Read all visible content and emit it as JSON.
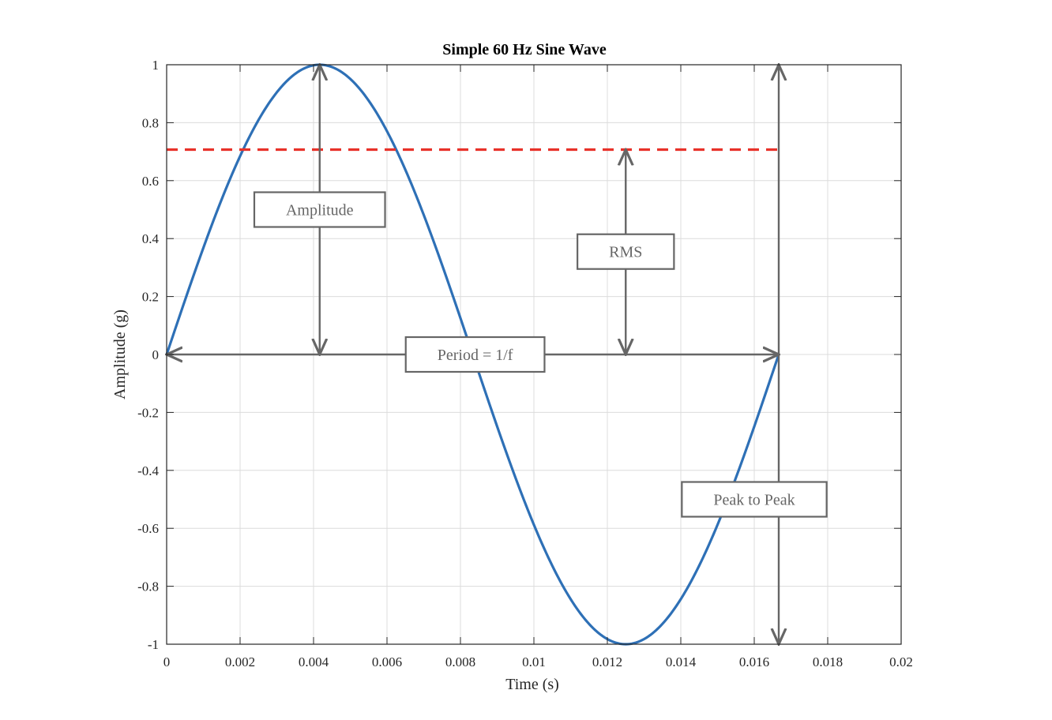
{
  "chart_data": {
    "type": "line",
    "title": "Simple 60 Hz Sine Wave",
    "xlabel": "Time (s)",
    "ylabel": "Amplitude (g)",
    "xlim": [
      0,
      0.02
    ],
    "ylim": [
      -1,
      1
    ],
    "grid": true,
    "x_ticks": [
      "0",
      "0.002",
      "0.004",
      "0.006",
      "0.008",
      "0.01",
      "0.012",
      "0.014",
      "0.016",
      "0.018",
      "0.02"
    ],
    "y_ticks": [
      "1",
      "0.8",
      "0.6",
      "0.4",
      "0.2",
      "0",
      "-0.2",
      "-0.4",
      "-0.6",
      "-0.8",
      "-1"
    ],
    "frequency_hz": 60,
    "series": [
      {
        "function": "sin(2*pi*60*t)",
        "t_range": [
          0,
          0.016667
        ],
        "color": "#2e70b6"
      }
    ],
    "rms_level": 0.7071,
    "rms_line": {
      "x_range": [
        0,
        0.016667
      ],
      "color": "#e8322a",
      "style": "dashed"
    },
    "annotations": [
      {
        "label": "Amplitude",
        "type": "double-arrow",
        "from": [
          0.004167,
          0
        ],
        "to": [
          0.004167,
          1
        ],
        "label_at": [
          0.004167,
          0.5
        ]
      },
      {
        "label": "RMS",
        "type": "double-arrow",
        "from": [
          0.0125,
          0
        ],
        "to": [
          0.0125,
          0.7071
        ],
        "label_at": [
          0.0125,
          0.355
        ]
      },
      {
        "label": "Period = 1/f",
        "type": "double-arrow",
        "from": [
          0,
          0
        ],
        "to": [
          0.016667,
          0
        ],
        "label_at": [
          0.0084,
          0
        ]
      },
      {
        "label": "Peak to Peak",
        "type": "double-arrow",
        "from": [
          0.016667,
          -1
        ],
        "to": [
          0.016667,
          1
        ],
        "label_at": [
          0.016,
          -0.5
        ]
      }
    ],
    "annotation_color": "#666666"
  }
}
